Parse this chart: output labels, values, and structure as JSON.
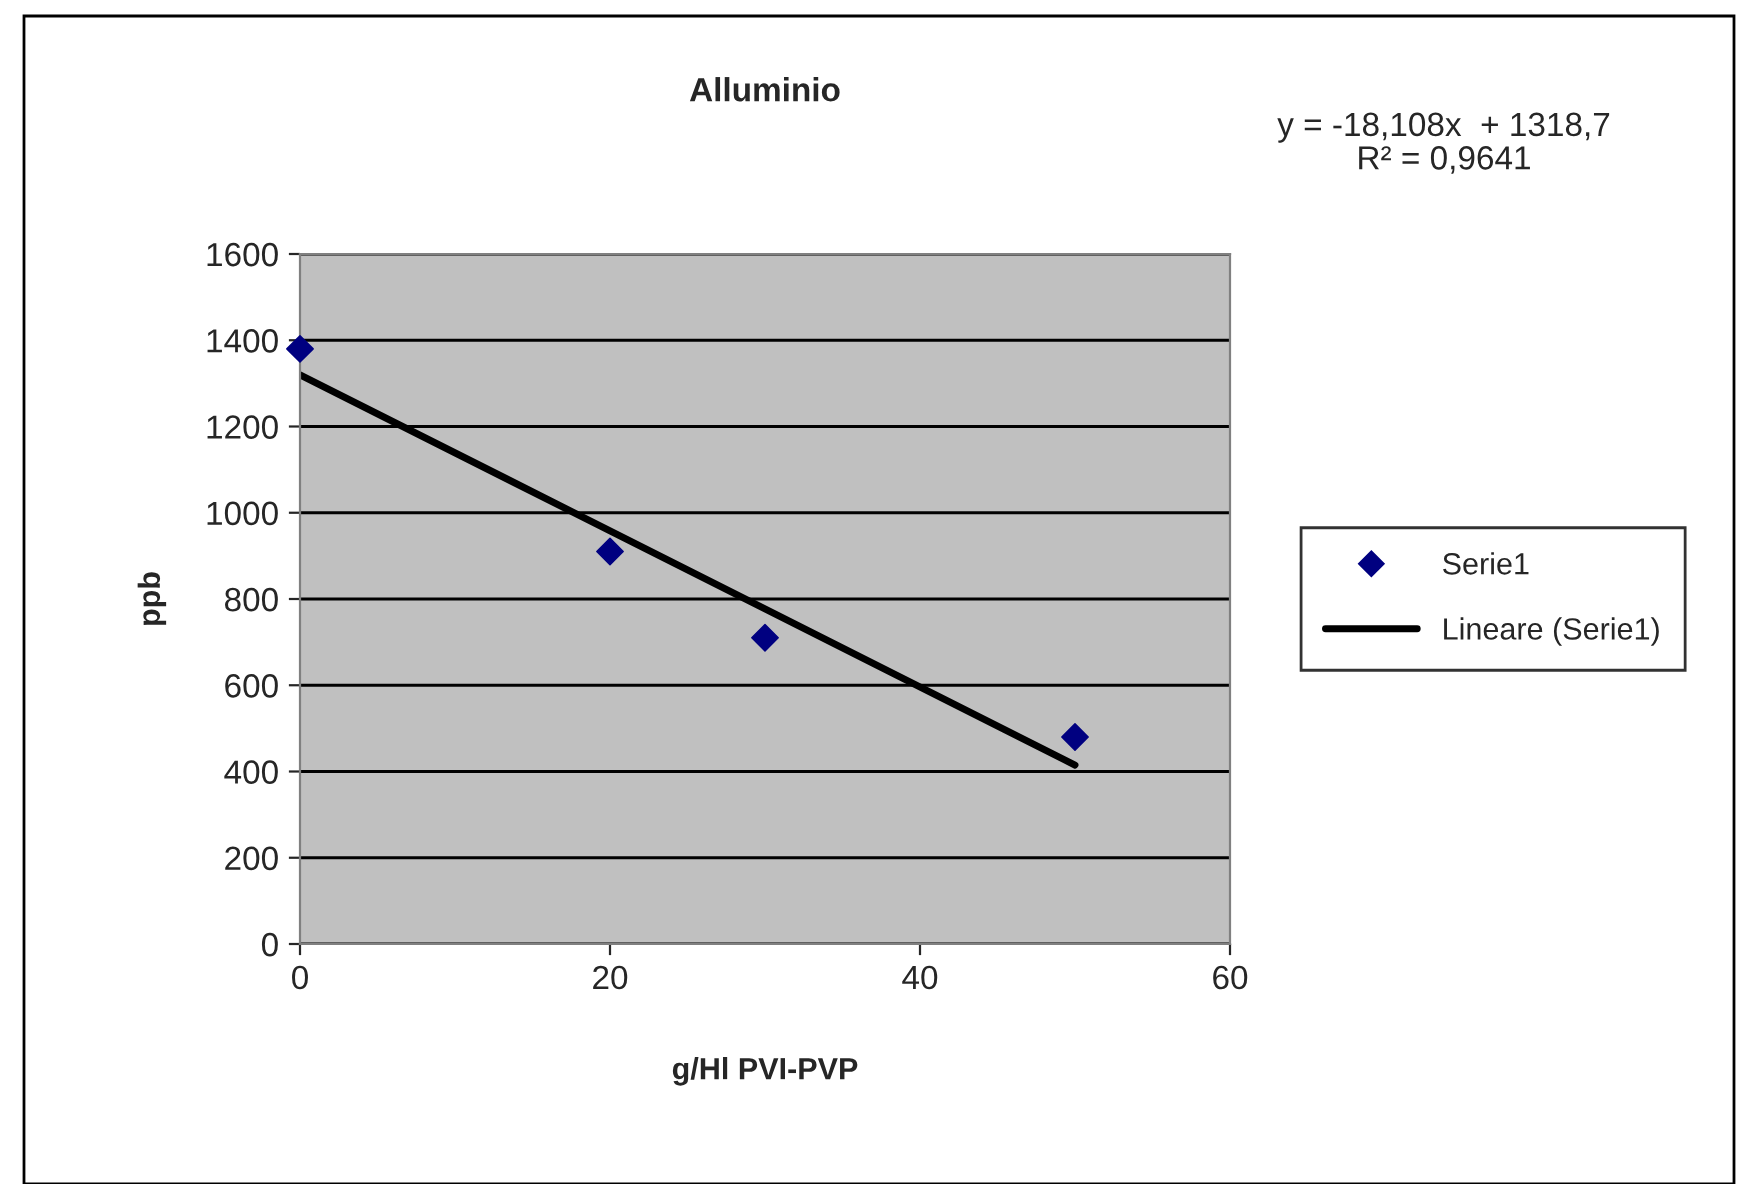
{
  "chart_data": {
    "type": "scatter",
    "title": "Alluminio",
    "xlabel": "g/Hl PVI-PVP",
    "ylabel": "ppb",
    "annotations": [
      "y = -18,108x  + 1318,7\nR² = 0,9641"
    ],
    "series": [
      {
        "name": "Serie1",
        "color": "#000080",
        "marker": "diamond",
        "x": [
          0,
          20,
          30,
          50
        ],
        "values": [
          1380,
          910,
          710,
          480
        ]
      },
      {
        "name": "Lineare (Serie1)",
        "type": "line",
        "color": "#000000",
        "marker": "none",
        "line_style": "solid",
        "x": [
          0,
          50
        ],
        "values": [
          1320,
          415
        ]
      }
    ],
    "xlim": [
      0,
      60
    ],
    "xticks": [
      0,
      20,
      40,
      60
    ],
    "ylim": [
      0,
      1600
    ],
    "yticks": [
      0,
      200,
      400,
      600,
      800,
      1000,
      1200,
      1400,
      1600
    ],
    "grid": "y",
    "legend": "right"
  }
}
